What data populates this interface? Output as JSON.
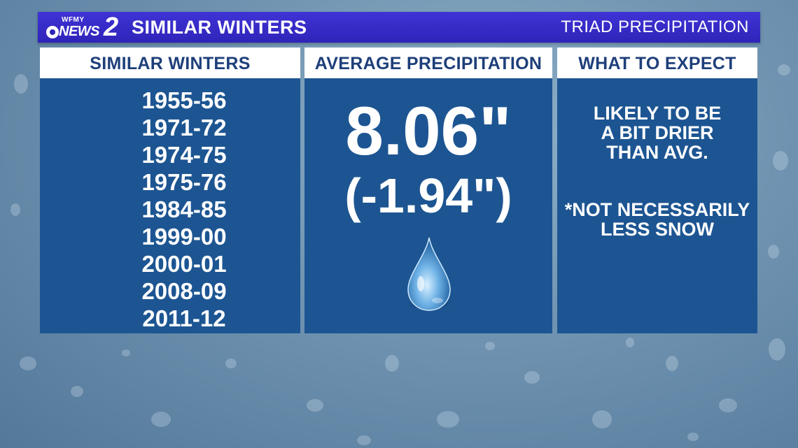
{
  "header": {
    "logo_small": "WFMY",
    "logo_news": "NEWS",
    "logo_number": "2",
    "title": "SIMILAR WINTERS",
    "right_label": "TRIAD PRECIPITATION"
  },
  "columns": {
    "similar": {
      "heading": "SIMILAR WINTERS",
      "years": [
        "1955-56",
        "1971-72",
        "1974-75",
        "1975-76",
        "1984-85",
        "1999-00",
        "2000-01",
        "2008-09",
        "2011-12"
      ]
    },
    "average": {
      "heading": "AVERAGE PRECIPITATION",
      "value": "8.06\"",
      "difference": "(-1.94\")",
      "icon": "water-drop-icon"
    },
    "expect": {
      "heading": "WHAT TO EXPECT",
      "lines1": [
        "LIKELY TO BE",
        "A BIT DRIER",
        "THAN AVG."
      ],
      "lines2": [
        "*NOT NECESSARILY",
        "LESS SNOW"
      ]
    }
  },
  "colors": {
    "header_bg": "#3f33d6",
    "panel_bg": "#1d5592",
    "heading_text": "#1e3f7a",
    "background": "#6f93b0"
  }
}
